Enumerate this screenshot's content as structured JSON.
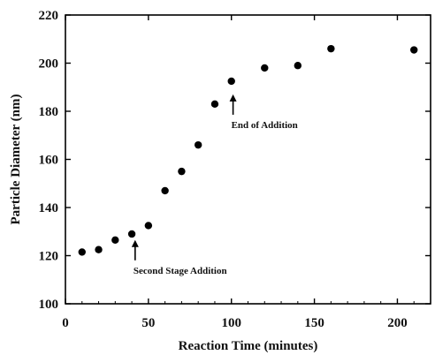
{
  "chart_data": {
    "type": "scatter",
    "title": "",
    "xlabel": "Reaction Time (minutes)",
    "ylabel": "Particle Diameter (nm)",
    "xlim": [
      0,
      220
    ],
    "ylim": [
      100,
      220
    ],
    "xticks": [
      0,
      50,
      100,
      150,
      200
    ],
    "yticks": [
      100,
      120,
      140,
      160,
      180,
      200,
      220
    ],
    "grid": false,
    "legend": "none",
    "series": [
      {
        "x": [
          10,
          20,
          30,
          40,
          50,
          60,
          70,
          80,
          90,
          100,
          120,
          140,
          160,
          210
        ],
        "y": [
          121.5,
          122.5,
          126.5,
          129,
          132.5,
          147,
          155,
          166,
          183,
          192.5,
          198,
          199,
          206,
          205.5
        ]
      }
    ],
    "annotations": [
      {
        "text": "Second Stage Addition",
        "x": 42,
        "y": 126.5,
        "arrow": "up"
      },
      {
        "text": "End of Addition",
        "x": 101,
        "y": 187,
        "arrow": "up"
      }
    ],
    "colors": {
      "marker": "#000000",
      "axis": "#000000"
    }
  }
}
